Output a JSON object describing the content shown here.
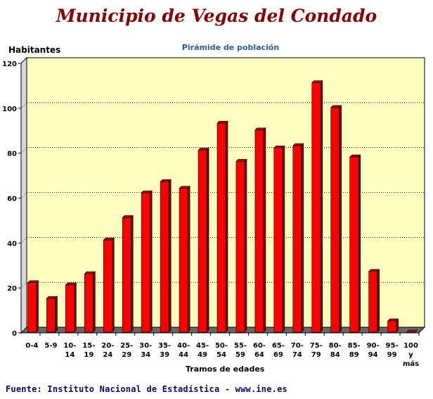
{
  "page": {
    "title": "Municipio de Vegas del Condado",
    "footer": "Fuente: Instituto Nacional de Estadística - www.ine.es"
  },
  "colors": {
    "plot_background": "#ffffc0",
    "bar_fill": "#ff0000",
    "title": "#8b0000",
    "subtitle": "#1f5faa",
    "footer": "#00106b"
  },
  "chart_data": {
    "type": "bar",
    "title": "Pirámide de población",
    "xlabel": "Tramos de edades",
    "ylabel": "Habitantes",
    "ylim": [
      0,
      120
    ],
    "yticks": [
      0,
      20,
      40,
      60,
      80,
      100,
      120
    ],
    "grid": true,
    "categories": [
      "0-4",
      "5-9",
      "10-14",
      "15-19",
      "20-24",
      "25-29",
      "30-34",
      "35-39",
      "40-44",
      "45-49",
      "50-54",
      "55-59",
      "60-64",
      "65-69",
      "70-74",
      "75-79",
      "80-84",
      "85-89",
      "90-94",
      "95-99",
      "100 y más"
    ],
    "category_label_lines": [
      [
        "0-4"
      ],
      [
        "5-9"
      ],
      [
        "10-",
        "14"
      ],
      [
        "15-",
        "19"
      ],
      [
        "20-",
        "24"
      ],
      [
        "25-",
        "29"
      ],
      [
        "30-",
        "34"
      ],
      [
        "35-",
        "39"
      ],
      [
        "40-",
        "44"
      ],
      [
        "45-",
        "49"
      ],
      [
        "50-",
        "54"
      ],
      [
        "55-",
        "59"
      ],
      [
        "60-",
        "64"
      ],
      [
        "65-",
        "69"
      ],
      [
        "70-",
        "74"
      ],
      [
        "75-",
        "79"
      ],
      [
        "80-",
        "84"
      ],
      [
        "85-",
        "89"
      ],
      [
        "90-",
        "94"
      ],
      [
        "95-",
        "99"
      ],
      [
        "100",
        "y",
        "más"
      ]
    ],
    "values": [
      22,
      15,
      21,
      26,
      41,
      51,
      62,
      67,
      64,
      81,
      93,
      76,
      90,
      82,
      83,
      111,
      100,
      78,
      27,
      5,
      0
    ]
  }
}
